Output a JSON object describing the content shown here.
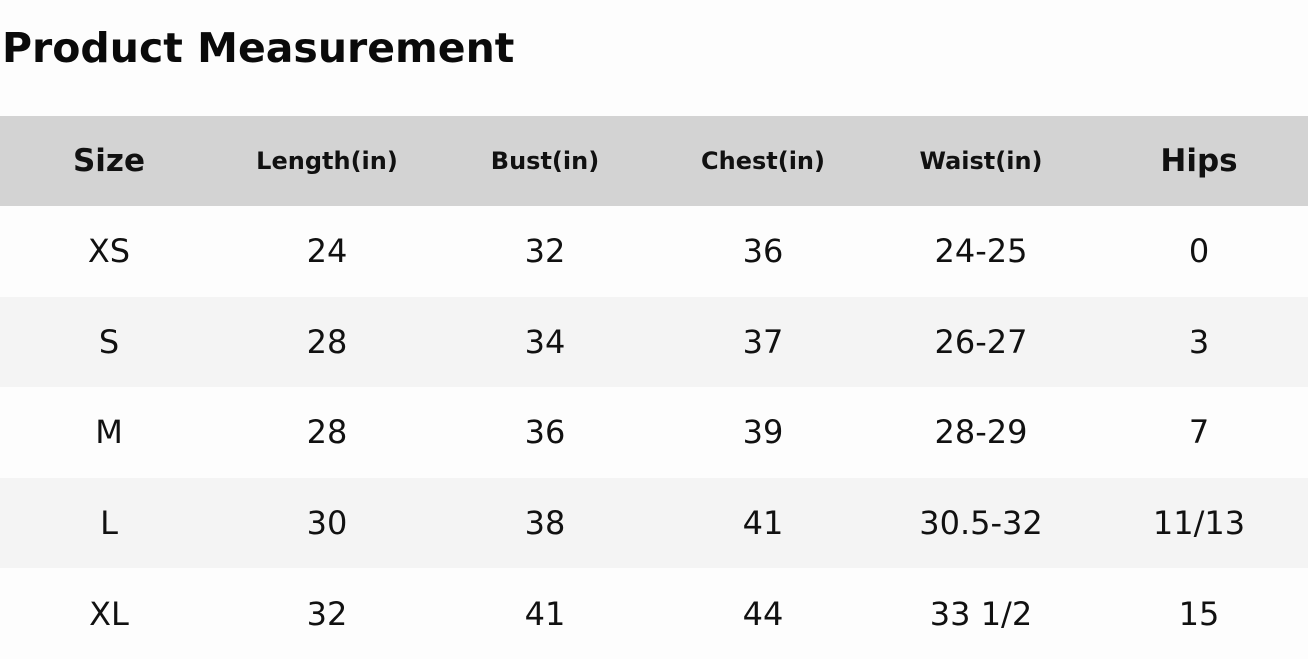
{
  "title": "Product Measurement",
  "table": {
    "headers": [
      "Size",
      "Length(in)",
      "Bust(in)",
      "Chest(in)",
      "Waist(in)",
      "Hips"
    ],
    "rows": [
      [
        "XS",
        "24",
        "32",
        "36",
        "24-25",
        "0"
      ],
      [
        "S",
        "28",
        "34",
        "37",
        "26-27",
        "3"
      ],
      [
        "M",
        "28",
        "36",
        "39",
        "28-29",
        "7"
      ],
      [
        "L",
        "30",
        "38",
        "41",
        "30.5-32",
        "11/13"
      ],
      [
        "XL",
        "32",
        "41",
        "44",
        "33 1/2",
        "15"
      ]
    ]
  },
  "colors": {
    "header_bg": "#d3d3d3",
    "row_alt_bg": "#f4f4f4",
    "row_bg": "#fdfdfd"
  }
}
